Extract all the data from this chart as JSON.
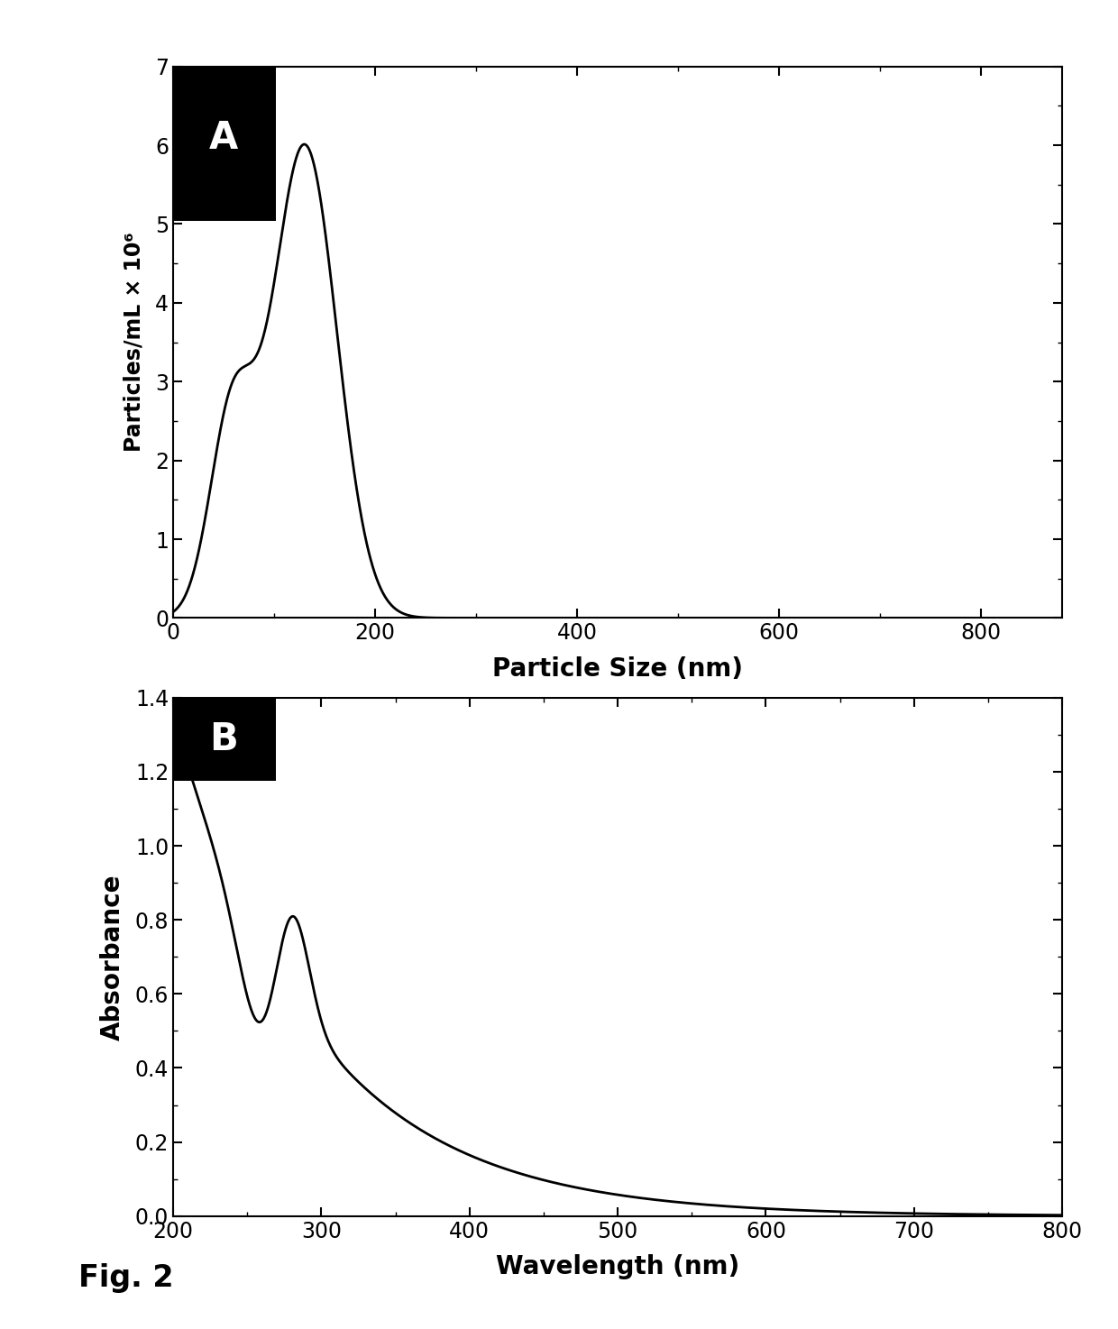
{
  "panel_A": {
    "xlabel": "Particle Size (nm)",
    "ylabel": "Particles/mL × 10⁶",
    "xlim": [
      0,
      880
    ],
    "ylim": [
      0,
      7
    ],
    "xticks": [
      0,
      200,
      400,
      600,
      800
    ],
    "yticks": [
      0,
      1,
      2,
      3,
      4,
      5,
      6,
      7
    ],
    "label": "A"
  },
  "panel_B": {
    "xlabel": "Wavelength (nm)",
    "ylabel": "Absorbance",
    "xlim": [
      200,
      800
    ],
    "ylim": [
      0,
      1.4
    ],
    "xticks": [
      200,
      300,
      400,
      500,
      600,
      700,
      800
    ],
    "yticks": [
      0,
      0.2,
      0.4,
      0.6,
      0.8,
      1.0,
      1.2,
      1.4
    ],
    "label": "B"
  },
  "fig_label": "Fig. 2",
  "background_color": "#ffffff",
  "line_color": "#000000",
  "label_box_color": "#000000",
  "label_text_color": "#ffffff"
}
